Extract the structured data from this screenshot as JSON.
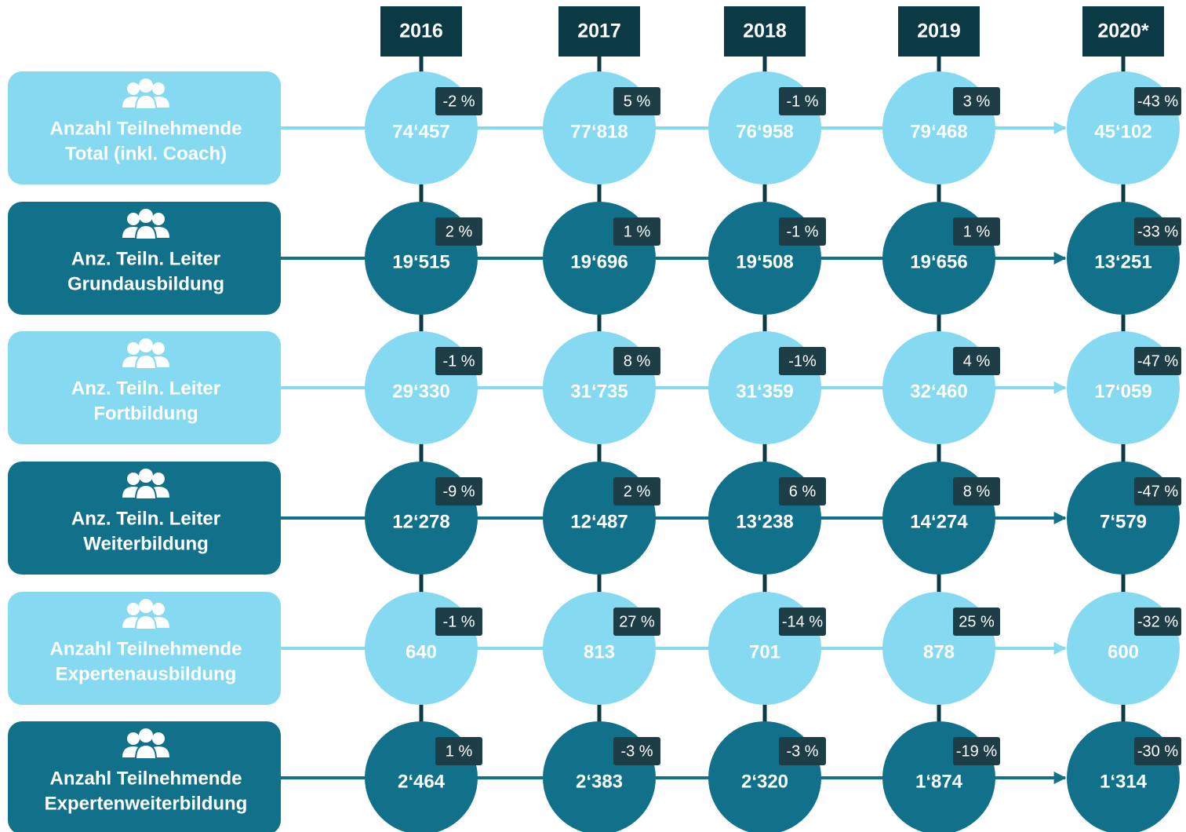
{
  "years": [
    "2016",
    "2017",
    "2018",
    "2019",
    "2020*"
  ],
  "rows": [
    {
      "label": [
        "Anzahl Teilnehmende",
        "Total (inkl. Coach)"
      ],
      "color": "#85d9f0",
      "values": [
        "74‘457",
        "77‘818",
        "76‘958",
        "79‘468",
        "45‘102"
      ],
      "changes": [
        "-2 %",
        "5 %",
        "-1 %",
        "3 %",
        "-43 %"
      ]
    },
    {
      "label": [
        "Anz. Teiln. Leiter",
        "Grundausbildung"
      ],
      "color": "#11718a",
      "values": [
        "19‘515",
        "19‘696",
        "19‘508",
        "19‘656",
        "13‘251"
      ],
      "changes": [
        "2 %",
        "1 %",
        "-1 %",
        "1 %",
        "-33 %"
      ]
    },
    {
      "label": [
        "Anz. Teiln. Leiter",
        "Fortbildung"
      ],
      "color": "#85d9f0",
      "values": [
        "29‘330",
        "31‘735",
        "31‘359",
        "32‘460",
        "17‘059"
      ],
      "changes": [
        "-1 %",
        "8 %",
        "-1%",
        "4 %",
        "-47 %"
      ]
    },
    {
      "label": [
        "Anz. Teiln. Leiter",
        "Weiterbildung"
      ],
      "color": "#11718a",
      "values": [
        "12‘278",
        "12‘487",
        "13‘238",
        "14‘274",
        "7‘579"
      ],
      "changes": [
        "-9 %",
        "2 %",
        "6 %",
        "8 %",
        "-47 %"
      ]
    },
    {
      "label": [
        "Anzahl Teilnehmende",
        "Expertenausbildung"
      ],
      "color": "#85d9f0",
      "values": [
        "640",
        "813",
        "701",
        "878",
        "600"
      ],
      "changes": [
        "-1 %",
        "27 %",
        "-14 %",
        "25 %",
        "-32 %"
      ]
    },
    {
      "label": [
        "Anzahl Teilnehmende",
        "Expertenweiterbildung"
      ],
      "color": "#11718a",
      "values": [
        "2‘464",
        "2‘383",
        "2‘320",
        "1‘874",
        "1‘314"
      ],
      "changes": [
        "1 %",
        "-3 %",
        "-3 %",
        "-19 %",
        "-30 %"
      ]
    }
  ]
}
